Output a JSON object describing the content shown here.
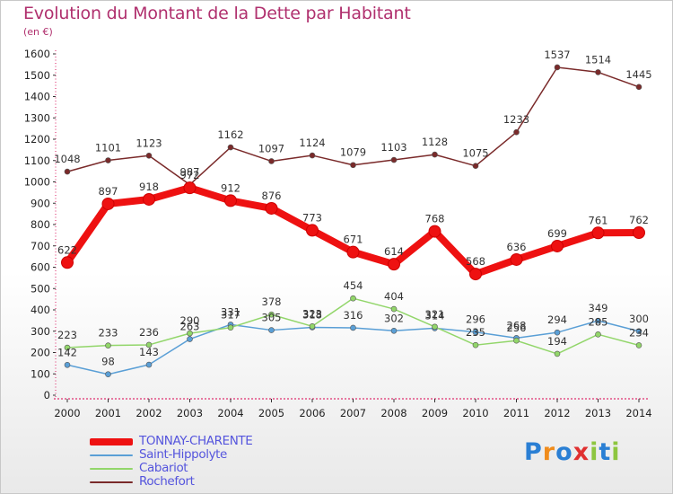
{
  "title": "Evolution du Montant de la Dette par Habitant",
  "subtitle": "(en €)",
  "brand": {
    "text": "Proxiti",
    "colors": [
      "#2a7fd4",
      "#f08c1c",
      "#2a7fd4",
      "#e03030",
      "#8dc63f",
      "#2a7fd4",
      "#8dc63f"
    ]
  },
  "chart_data": {
    "type": "line",
    "title": "Evolution du Montant de la Dette par Habitant",
    "ylabel": "(en €)",
    "xlabel": "",
    "x": [
      "2000",
      "2001",
      "2002",
      "2003",
      "2004",
      "2005",
      "2006",
      "2007",
      "2008",
      "2009",
      "2010",
      "2011",
      "2012",
      "2013",
      "2014"
    ],
    "ylim": [
      0,
      1600
    ],
    "yticks": [
      0,
      100,
      200,
      300,
      400,
      500,
      600,
      700,
      800,
      900,
      1000,
      1100,
      1200,
      1300,
      1400,
      1500,
      1600
    ],
    "grid": false,
    "legend_position": "bottom-left",
    "series": [
      {
        "name": "TONNAY-CHARENTE",
        "color": "#ee1111",
        "values": [
          622,
          897,
          918,
          972,
          912,
          876,
          773,
          671,
          614,
          768,
          568,
          636,
          699,
          761,
          762
        ]
      },
      {
        "name": "Saint-Hippolyte",
        "color": "#5a9fd6",
        "values": [
          142,
          98,
          143,
          263,
          331,
          305,
          318,
          316,
          302,
          314,
          296,
          268,
          294,
          349,
          300
        ]
      },
      {
        "name": "Cabariot",
        "color": "#92d66a",
        "values": [
          223,
          233,
          236,
          290,
          317,
          378,
          323,
          454,
          404,
          321,
          235,
          256,
          194,
          285,
          234
        ]
      },
      {
        "name": "Rochefort",
        "color": "#7a2a2a",
        "values": [
          1048,
          1101,
          1123,
          987,
          1162,
          1097,
          1124,
          1079,
          1103,
          1128,
          1075,
          1233,
          1537,
          1514,
          1445
        ]
      }
    ]
  }
}
